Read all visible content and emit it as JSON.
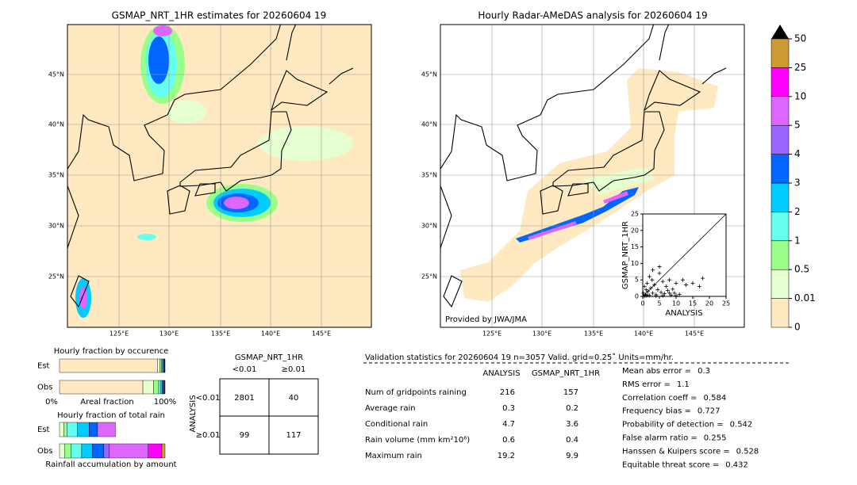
{
  "maps": [
    {
      "title": "GSMAP_NRT_1HR estimates for 20260604 19",
      "lon_labels": [
        "125°E",
        "130°E",
        "135°E",
        "140°E",
        "145°E"
      ],
      "lat_labels": [
        "45°N",
        "40°N",
        "35°N",
        "30°N",
        "25°N"
      ]
    },
    {
      "title": "Hourly Radar-AMeDAS analysis for 20260604 19",
      "lon_labels": [
        "125°E",
        "130°E",
        "135°E",
        "140°E",
        "145°E"
      ],
      "lat_labels": [
        "45°N",
        "40°N",
        "35°N",
        "30°N",
        "25°N"
      ],
      "credit": "Provided by JWA/JMA"
    }
  ],
  "colorbar": {
    "ticks": [
      0,
      0.01,
      0.5,
      1,
      2,
      3,
      4,
      5,
      10,
      25,
      50
    ],
    "colors": [
      "#fee9c0",
      "#e6ffd0",
      "#99ff88",
      "#66ffee",
      "#00ccff",
      "#0066ff",
      "#9966ff",
      "#dd66ff",
      "#ff00ff",
      "#cc9933"
    ],
    "extend_color": "#000000"
  },
  "scatter": {
    "x_label": "ANALYSIS",
    "y_label": "GSMAP_NRT_1HR",
    "xlim": [
      0,
      25
    ],
    "ylim": [
      0,
      25
    ],
    "xticks": [
      0,
      5,
      10,
      15,
      20,
      25
    ],
    "yticks": [
      0,
      5,
      10,
      15,
      20,
      25
    ],
    "x": [
      0.2,
      0.5,
      0.8,
      1,
      1.3,
      1.6,
      2,
      2.4,
      2.8,
      3,
      3.5,
      4,
      4.5,
      5,
      5.5,
      6,
      6.5,
      7,
      7.5,
      8,
      8.5,
      9,
      9.5,
      10,
      11,
      12,
      13,
      15,
      17,
      18,
      3,
      5,
      2,
      1,
      4,
      6,
      0.5,
      1.5,
      8,
      10
    ],
    "y": [
      1,
      3,
      0.5,
      2,
      4,
      1.5,
      0.3,
      2.5,
      5,
      1,
      3.5,
      0.5,
      2,
      7,
      1.2,
      4.5,
      0.8,
      3,
      1.8,
      5,
      0.4,
      2.2,
      1,
      4,
      0.6,
      5,
      3.5,
      4,
      3,
      5.5,
      8,
      9,
      6,
      0.2,
      0.1,
      0.2,
      0.1,
      0.3,
      1,
      0.2
    ]
  },
  "occurrence": {
    "title": "Hourly fraction by occurence",
    "rows": [
      {
        "label": "Est",
        "values": [
          93,
          2,
          1.5,
          1,
          1,
          0.7,
          0.3,
          0.3,
          0.2,
          0
        ]
      },
      {
        "label": "Obs",
        "values": [
          79,
          10,
          5,
          2,
          1.5,
          1,
          0.7,
          0.5,
          0.3,
          0
        ]
      }
    ],
    "axis_labels": [
      "0%",
      "Areal fraction",
      "100%"
    ]
  },
  "total_rain": {
    "title": "Hourly fraction of total rain",
    "rows": [
      {
        "label": "Est",
        "values": [
          0,
          4,
          3,
          10,
          11,
          8,
          0,
          17,
          0,
          0
        ]
      },
      {
        "label": "Obs",
        "values": [
          0,
          5,
          6,
          10,
          10,
          11,
          5,
          37,
          13,
          3
        ]
      }
    ],
    "caption": "Rainfall accumulation by amount"
  },
  "contingency": {
    "col_header": "GSMAP_NRT_1HR",
    "col_labels": [
      "<0.01",
      "≥0.01"
    ],
    "row_header": "ANALYSIS",
    "row_labels": [
      "<0.01",
      "≥0.01"
    ],
    "cells": [
      [
        2801,
        40
      ],
      [
        99,
        117
      ]
    ]
  },
  "validation": {
    "header": "Validation statistics for 20260604 19  n=3057 Valid. grid=0.25˚ Units=mm/hr.",
    "columns": [
      "ANALYSIS",
      "GSMAP_NRT_1HR"
    ],
    "rows": [
      {
        "label": "Num of gridpoints raining",
        "analysis": 216,
        "gsmap": 157
      },
      {
        "label": "Average rain",
        "analysis": 0.3,
        "gsmap": 0.2
      },
      {
        "label": "Conditional rain",
        "analysis": 4.7,
        "gsmap": 3.6
      },
      {
        "label": "Rain volume (mm km²10⁶)",
        "analysis": 0.6,
        "gsmap": 0.4
      },
      {
        "label": "Maximum rain",
        "analysis": 19.2,
        "gsmap": 9.9
      }
    ],
    "scores": [
      {
        "label": "Mean abs error =",
        "value": 0.3
      },
      {
        "label": "RMS error =",
        "value": 1.1
      },
      {
        "label": "Correlation coeff =",
        "value": 0.584
      },
      {
        "label": "Frequency bias =",
        "value": 0.727
      },
      {
        "label": "Probability of detection =",
        "value": 0.542
      },
      {
        "label": "False alarm ratio =",
        "value": 0.255
      },
      {
        "label": "Hanssen & Kuipers score =",
        "value": 0.528
      },
      {
        "label": "Equitable threat score =",
        "value": 0.432
      }
    ]
  }
}
